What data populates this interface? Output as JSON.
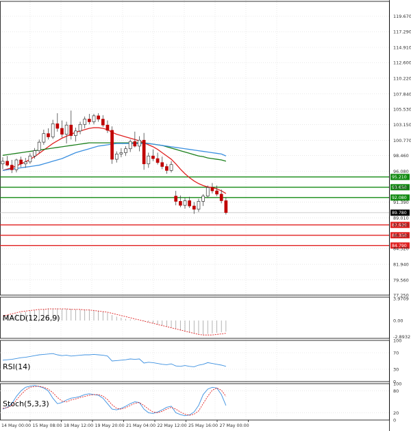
{
  "colors": {
    "grid": "#d9d9d9",
    "bull": "#ffffff",
    "bear": "#c00000",
    "wick": "#444444",
    "ma_fast": "#e02020",
    "ma_mid": "#1a7f1a",
    "ma_slow": "#3a8fe0",
    "resistance": "#138a13",
    "support": "#e02020",
    "current_price": "#000000",
    "macd_hist": "#a0a0a0",
    "macd_signal": "#e02020",
    "rsi": "#3a8fe0",
    "stoch_k": "#3a8fe0",
    "stoch_d": "#e02020"
  },
  "chart_data": [
    {
      "type": "candlestick",
      "panel": "price",
      "ylim": [
        77.25,
        121.9
      ],
      "yticks": [
        "119.670",
        "117.290",
        "114.910",
        "112.600",
        "110.220",
        "107.840",
        "105.530",
        "103.150",
        "100.770",
        "98.460",
        "96.080",
        "93.650",
        "91.390",
        "89.010",
        "87.920",
        "86.350",
        "84.320",
        "81.940",
        "79.560",
        "77.250"
      ],
      "xticks": [
        "14 May 00:00",
        "15 May 08:00",
        "18 May 12:00",
        "19 May 20:00",
        "21 May 04:00",
        "22 May 12:00",
        "25 May 16:00",
        "27 May 00:00"
      ],
      "candles": [
        {
          "o": 97.2,
          "h": 98.2,
          "l": 96.4,
          "c": 97.6
        },
        {
          "o": 97.6,
          "h": 98.4,
          "l": 96.8,
          "c": 97.0
        },
        {
          "o": 97.0,
          "h": 97.8,
          "l": 95.8,
          "c": 96.3
        },
        {
          "o": 96.3,
          "h": 98.0,
          "l": 95.9,
          "c": 97.8
        },
        {
          "o": 97.8,
          "h": 98.3,
          "l": 96.7,
          "c": 97.2
        },
        {
          "o": 97.2,
          "h": 98.1,
          "l": 96.6,
          "c": 97.5
        },
        {
          "o": 97.5,
          "h": 98.8,
          "l": 97.2,
          "c": 98.4
        },
        {
          "o": 98.4,
          "h": 99.6,
          "l": 98.0,
          "c": 99.2
        },
        {
          "o": 99.2,
          "h": 100.9,
          "l": 98.8,
          "c": 100.5
        },
        {
          "o": 100.5,
          "h": 102.4,
          "l": 100.1,
          "c": 101.8
        },
        {
          "o": 101.8,
          "h": 102.6,
          "l": 100.9,
          "c": 101.3
        },
        {
          "o": 101.3,
          "h": 103.9,
          "l": 101.0,
          "c": 103.3
        },
        {
          "o": 103.3,
          "h": 104.9,
          "l": 102.1,
          "c": 102.6
        },
        {
          "o": 102.6,
          "h": 103.8,
          "l": 101.2,
          "c": 101.7
        },
        {
          "o": 101.7,
          "h": 103.6,
          "l": 100.3,
          "c": 103.1
        },
        {
          "o": 103.1,
          "h": 105.3,
          "l": 100.9,
          "c": 101.5
        },
        {
          "o": 101.5,
          "h": 102.7,
          "l": 100.6,
          "c": 102.2
        },
        {
          "o": 102.2,
          "h": 103.6,
          "l": 101.7,
          "c": 103.2
        },
        {
          "o": 103.2,
          "h": 104.4,
          "l": 102.6,
          "c": 104.0
        },
        {
          "o": 104.0,
          "h": 104.8,
          "l": 103.2,
          "c": 103.6
        },
        {
          "o": 103.6,
          "h": 104.8,
          "l": 103.2,
          "c": 104.5
        },
        {
          "o": 104.5,
          "h": 104.9,
          "l": 103.6,
          "c": 104.0
        },
        {
          "o": 104.0,
          "h": 104.6,
          "l": 102.8,
          "c": 103.1
        },
        {
          "o": 103.1,
          "h": 103.8,
          "l": 101.9,
          "c": 102.3
        },
        {
          "o": 102.3,
          "h": 102.9,
          "l": 97.2,
          "c": 97.9
        },
        {
          "o": 97.9,
          "h": 99.1,
          "l": 97.4,
          "c": 98.7
        },
        {
          "o": 98.7,
          "h": 99.6,
          "l": 98.2,
          "c": 98.9
        },
        {
          "o": 98.9,
          "h": 99.9,
          "l": 98.4,
          "c": 99.5
        },
        {
          "o": 99.5,
          "h": 100.9,
          "l": 99.0,
          "c": 100.6
        },
        {
          "o": 100.6,
          "h": 102.1,
          "l": 99.7,
          "c": 99.9
        },
        {
          "o": 99.9,
          "h": 101.4,
          "l": 99.1,
          "c": 100.8
        },
        {
          "o": 100.8,
          "h": 101.9,
          "l": 96.3,
          "c": 97.2
        },
        {
          "o": 97.2,
          "h": 98.9,
          "l": 96.6,
          "c": 98.4
        },
        {
          "o": 98.4,
          "h": 99.4,
          "l": 97.6,
          "c": 98.0
        },
        {
          "o": 98.0,
          "h": 98.9,
          "l": 97.1,
          "c": 97.4
        },
        {
          "o": 97.4,
          "h": 98.3,
          "l": 96.4,
          "c": 96.8
        },
        {
          "o": 96.8,
          "h": 97.2,
          "l": 95.7,
          "c": 96.2
        },
        {
          "o": 96.2,
          "h": 97.6,
          "l": 95.9,
          "c": 97.1
        },
        {
          "o": 92.3,
          "h": 93.1,
          "l": 90.9,
          "c": 91.5
        },
        {
          "o": 91.5,
          "h": 92.4,
          "l": 90.6,
          "c": 90.9
        },
        {
          "o": 90.9,
          "h": 92.0,
          "l": 90.4,
          "c": 91.6
        },
        {
          "o": 91.6,
          "h": 92.2,
          "l": 90.5,
          "c": 90.8
        },
        {
          "o": 90.8,
          "h": 91.4,
          "l": 89.6,
          "c": 90.3
        },
        {
          "o": 90.3,
          "h": 91.9,
          "l": 89.9,
          "c": 91.5
        },
        {
          "o": 91.5,
          "h": 92.6,
          "l": 90.8,
          "c": 92.3
        },
        {
          "o": 92.3,
          "h": 93.9,
          "l": 92.0,
          "c": 93.6
        },
        {
          "o": 93.6,
          "h": 94.3,
          "l": 92.7,
          "c": 93.1
        },
        {
          "o": 93.1,
          "h": 93.9,
          "l": 92.3,
          "c": 92.6
        },
        {
          "o": 92.6,
          "h": 93.3,
          "l": 91.2,
          "c": 91.6
        },
        {
          "o": 91.6,
          "h": 92.1,
          "l": 89.5,
          "c": 89.8
        }
      ],
      "moving_averages": [
        {
          "color_key": "ma_fast",
          "values": [
            96.2,
            96.4,
            96.6,
            96.9,
            97.2,
            97.5,
            97.9,
            98.3,
            98.8,
            99.3,
            99.8,
            100.3,
            100.7,
            101.1,
            101.4,
            101.7,
            102.0,
            102.2,
            102.4,
            102.6,
            102.7,
            102.7,
            102.6,
            102.4,
            102.0,
            101.7,
            101.5,
            101.3,
            101.1,
            100.9,
            100.7,
            100.4,
            100.1,
            99.8,
            99.4,
            98.9,
            98.4,
            97.9,
            97.2,
            96.4,
            95.7,
            95.1,
            94.6,
            94.2,
            93.9,
            93.7,
            93.6,
            93.4,
            93.1,
            92.7
          ]
        },
        {
          "color_key": "ma_mid",
          "values": [
            98.5,
            98.6,
            98.7,
            98.8,
            98.9,
            99.0,
            99.1,
            99.2,
            99.3,
            99.4,
            99.5,
            99.6,
            99.7,
            99.8,
            99.9,
            100.0,
            100.1,
            100.2,
            100.3,
            100.4,
            100.4,
            100.4,
            100.4,
            100.4,
            100.4,
            100.4,
            100.4,
            100.4,
            100.4,
            100.4,
            100.4,
            100.4,
            100.3,
            100.2,
            100.1,
            100.0,
            99.8,
            99.6,
            99.4,
            99.2,
            99.0,
            98.8,
            98.6,
            98.4,
            98.3,
            98.1,
            98.0,
            97.9,
            97.8,
            97.6
          ]
        },
        {
          "color_key": "ma_slow",
          "values": [
            96.2,
            96.3,
            96.4,
            96.5,
            96.6,
            96.7,
            96.8,
            96.9,
            97.0,
            97.2,
            97.4,
            97.6,
            97.8,
            98.0,
            98.3,
            98.6,
            98.9,
            99.1,
            99.3,
            99.5,
            99.7,
            99.9,
            100.0,
            100.1,
            100.2,
            100.3,
            100.3,
            100.3,
            100.3,
            100.3,
            100.3,
            100.3,
            100.3,
            100.2,
            100.1,
            100.0,
            99.9,
            99.8,
            99.7,
            99.6,
            99.5,
            99.4,
            99.3,
            99.2,
            99.1,
            99.0,
            98.9,
            98.8,
            98.7,
            98.4
          ]
        }
      ],
      "levels": [
        {
          "label": "95.210",
          "value": 95.21,
          "color_key": "resistance"
        },
        {
          "label": "93.650",
          "value": 93.65,
          "color_key": "resistance"
        },
        {
          "label": "92.080",
          "value": 92.08,
          "color_key": "resistance"
        },
        {
          "label": "87.920",
          "value": 87.92,
          "color_key": "support"
        },
        {
          "label": "86.350",
          "value": 86.35,
          "color_key": "support"
        },
        {
          "label": "84.790",
          "value": 84.79,
          "color_key": "support"
        }
      ],
      "current_price": {
        "label": "89.780",
        "value": 89.78
      }
    },
    {
      "type": "bar",
      "panel": "macd",
      "title": "MACD(12,26,9)",
      "ylim": [
        -3.2,
        4.2
      ],
      "yticks": [
        "3.9709",
        "0.00",
        "-2.8932"
      ],
      "histogram": [
        0.6,
        0.8,
        1.0,
        1.2,
        1.4,
        1.6,
        1.8,
        1.9,
        2.0,
        2.1,
        2.2,
        2.2,
        2.2,
        2.1,
        2.1,
        2.1,
        2.0,
        2.0,
        2.0,
        2.0,
        1.9,
        1.8,
        1.6,
        1.4,
        1.0,
        0.7,
        0.5,
        0.3,
        0.2,
        0.1,
        0.0,
        -0.1,
        -0.3,
        -0.5,
        -0.7,
        -0.9,
        -1.1,
        -1.3,
        -1.5,
        -1.8,
        -2.0,
        -2.2,
        -2.4,
        -2.5,
        -2.5,
        -2.4,
        -2.3,
        -2.2,
        -2.1,
        -2.0
      ],
      "signal": [
        0.8,
        1.0,
        1.2,
        1.4,
        1.6,
        1.7,
        1.8,
        1.9,
        2.0,
        2.0,
        2.1,
        2.1,
        2.1,
        2.1,
        2.1,
        2.0,
        2.0,
        2.0,
        1.9,
        1.9,
        1.8,
        1.7,
        1.6,
        1.5,
        1.3,
        1.1,
        0.9,
        0.7,
        0.5,
        0.3,
        0.1,
        -0.1,
        -0.3,
        -0.5,
        -0.7,
        -0.9,
        -1.1,
        -1.3,
        -1.5,
        -1.7,
        -1.9,
        -2.1,
        -2.3,
        -2.5,
        -2.6,
        -2.6,
        -2.6,
        -2.5,
        -2.4,
        -2.3
      ]
    },
    {
      "type": "line",
      "panel": "rsi",
      "title": "RSI(14)",
      "ylim": [
        0,
        100
      ],
      "yticks": [
        "100",
        "70",
        "30",
        "0"
      ],
      "values": [
        52,
        53,
        54,
        56,
        58,
        59,
        61,
        63,
        65,
        66,
        67,
        68,
        65,
        63,
        64,
        62,
        63,
        64,
        65,
        65,
        66,
        65,
        64,
        62,
        50,
        51,
        52,
        53,
        55,
        54,
        55,
        45,
        47,
        46,
        44,
        42,
        41,
        43,
        38,
        37,
        39,
        37,
        36,
        40,
        42,
        46,
        44,
        42,
        40,
        37
      ]
    },
    {
      "type": "line",
      "panel": "stoch",
      "title": "Stoch(5,3,3)",
      "ylim": [
        0,
        100
      ],
      "yticks": [
        "100",
        "80",
        "20",
        "0"
      ],
      "series": [
        {
          "color_key": "stoch_k",
          "values": [
            30,
            35,
            45,
            65,
            80,
            90,
            93,
            95,
            92,
            88,
            80,
            60,
            45,
            48,
            55,
            60,
            62,
            65,
            70,
            72,
            70,
            68,
            60,
            45,
            30,
            28,
            32,
            38,
            45,
            50,
            48,
            30,
            20,
            18,
            22,
            28,
            35,
            38,
            20,
            15,
            12,
            14,
            22,
            40,
            70,
            85,
            90,
            88,
            70,
            40
          ]
        },
        {
          "color_key": "stoch_d",
          "values": [
            32,
            34,
            40,
            55,
            70,
            82,
            90,
            92,
            93,
            90,
            85,
            75,
            62,
            52,
            50,
            55,
            58,
            62,
            65,
            68,
            70,
            70,
            66,
            56,
            42,
            32,
            30,
            34,
            40,
            46,
            48,
            40,
            30,
            22,
            20,
            24,
            30,
            35,
            30,
            22,
            16,
            13,
            16,
            25,
            45,
            65,
            82,
            88,
            82,
            65
          ]
        }
      ]
    }
  ]
}
